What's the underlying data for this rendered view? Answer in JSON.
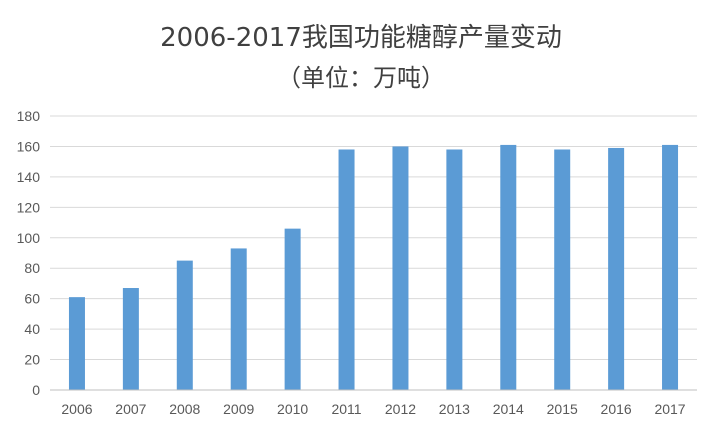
{
  "chart_data": {
    "type": "bar",
    "title": "2006-2017我国功能糖醇产量变动",
    "subtitle": "（单位：万吨）",
    "xlabel": "",
    "ylabel": "",
    "categories": [
      "2006",
      "2007",
      "2008",
      "2009",
      "2010",
      "2011",
      "2012",
      "2013",
      "2014",
      "2015",
      "2016",
      "2017"
    ],
    "series": [
      {
        "values": [
          61,
          67,
          85,
          93,
          106,
          158,
          160,
          158,
          161,
          158,
          159,
          161
        ]
      }
    ],
    "ylim": [
      0,
      180
    ],
    "yticks": [
      0,
      20,
      40,
      60,
      80,
      100,
      120,
      140,
      160,
      180
    ],
    "grid": true,
    "legend": "none",
    "colors": {
      "bar": "#5b9bd5",
      "grid": "#d9d9d9",
      "axis": "#bfbfbf",
      "text": "#595959",
      "title": "#404040"
    }
  }
}
